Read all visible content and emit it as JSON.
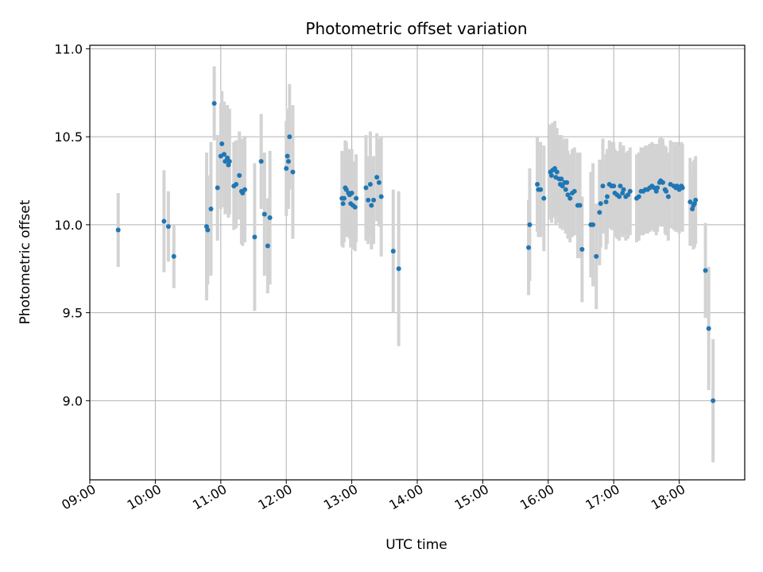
{
  "chart_data": {
    "type": "scatter",
    "title": "Photometric offset variation",
    "xlabel": "UTC time",
    "ylabel": "Photometric offset",
    "grid": true,
    "xlim": [
      "09:00",
      "19:00"
    ],
    "ylim": [
      8.55,
      11.02
    ],
    "x_ticks": [
      "09:00",
      "10:00",
      "11:00",
      "12:00",
      "13:00",
      "14:00",
      "15:00",
      "16:00",
      "17:00",
      "18:00"
    ],
    "y_ticks": [
      "9.0",
      "9.5",
      "10.0",
      "10.5",
      "11.0"
    ],
    "y_tick_values": [
      9.0,
      9.5,
      10.0,
      10.5,
      11.0
    ],
    "marker_color": "#1f77b4",
    "errorbar_color": "#d3d3d3",
    "points": [
      [
        "09:26",
        9.97,
        0.21
      ],
      [
        "10:08",
        10.02,
        0.29
      ],
      [
        "10:12",
        9.99,
        0.2
      ],
      [
        "10:17",
        9.82,
        0.18
      ],
      [
        "10:47",
        9.99,
        0.42
      ],
      [
        "10:48",
        9.97,
        0.31
      ],
      [
        "10:51",
        10.09,
        0.38
      ],
      [
        "10:54",
        10.69,
        0.21
      ],
      [
        "10:57",
        10.21,
        0.3
      ],
      [
        "11:00",
        10.39,
        0.3
      ],
      [
        "11:01",
        10.46,
        0.3
      ],
      [
        "11:03",
        10.4,
        0.3
      ],
      [
        "11:04",
        10.36,
        0.3
      ],
      [
        "11:06",
        10.38,
        0.3
      ],
      [
        "11:07",
        10.34,
        0.3
      ],
      [
        "11:08",
        10.36,
        0.3
      ],
      [
        "11:12",
        10.22,
        0.25
      ],
      [
        "11:14",
        10.23,
        0.25
      ],
      [
        "11:17",
        10.28,
        0.25
      ],
      [
        "11:19",
        10.19,
        0.3
      ],
      [
        "11:20",
        10.18,
        0.3
      ],
      [
        "11:22",
        10.2,
        0.3
      ],
      [
        "11:31",
        9.93,
        0.42
      ],
      [
        "11:37",
        10.36,
        0.27
      ],
      [
        "11:40",
        10.06,
        0.35
      ],
      [
        "11:43",
        9.88,
        0.27
      ],
      [
        "11:45",
        10.04,
        0.38
      ],
      [
        "12:00",
        10.32,
        0.27
      ],
      [
        "12:01",
        10.39,
        0.27
      ],
      [
        "12:02",
        10.36,
        0.27
      ],
      [
        "12:03",
        10.5,
        0.3
      ],
      [
        "12:06",
        10.3,
        0.38
      ],
      [
        "12:51",
        10.15,
        0.27
      ],
      [
        "12:52",
        10.12,
        0.25
      ],
      [
        "12:53",
        10.15,
        0.25
      ],
      [
        "12:54",
        10.21,
        0.27
      ],
      [
        "12:55",
        10.2,
        0.27
      ],
      [
        "12:57",
        10.18,
        0.25
      ],
      [
        "12:58",
        10.17,
        0.25
      ],
      [
        "12:59",
        10.12,
        0.25
      ],
      [
        "13:00",
        10.18,
        0.25
      ],
      [
        "13:01",
        10.11,
        0.25
      ],
      [
        "13:03",
        10.1,
        0.25
      ],
      [
        "13:04",
        10.15,
        0.25
      ],
      [
        "13:13",
        10.21,
        0.3
      ],
      [
        "13:15",
        10.14,
        0.25
      ],
      [
        "13:17",
        10.23,
        0.3
      ],
      [
        "13:18",
        10.11,
        0.25
      ],
      [
        "13:20",
        10.14,
        0.25
      ],
      [
        "13:23",
        10.27,
        0.25
      ],
      [
        "13:25",
        10.24,
        0.25
      ],
      [
        "13:27",
        10.16,
        0.34
      ],
      [
        "13:38",
        9.85,
        0.35
      ],
      [
        "13:43",
        9.75,
        0.44
      ],
      [
        "15:42",
        9.87,
        0.27
      ],
      [
        "15:43",
        10.0,
        0.32
      ],
      [
        "15:50",
        10.23,
        0.27
      ],
      [
        "15:51",
        10.2,
        0.27
      ],
      [
        "15:53",
        10.2,
        0.27
      ],
      [
        "15:56",
        10.15,
        0.3
      ],
      [
        "16:02",
        10.3,
        0.27
      ],
      [
        "16:03",
        10.28,
        0.27
      ],
      [
        "16:04",
        10.31,
        0.27
      ],
      [
        "16:06",
        10.32,
        0.27
      ],
      [
        "16:07",
        10.27,
        0.27
      ],
      [
        "16:08",
        10.3,
        0.25
      ],
      [
        "16:10",
        10.26,
        0.25
      ],
      [
        "16:11",
        10.23,
        0.25
      ],
      [
        "16:12",
        10.26,
        0.25
      ],
      [
        "16:13",
        10.22,
        0.25
      ],
      [
        "16:15",
        10.24,
        0.25
      ],
      [
        "16:16",
        10.2,
        0.25
      ],
      [
        "16:17",
        10.24,
        0.25
      ],
      [
        "16:18",
        10.17,
        0.25
      ],
      [
        "16:20",
        10.15,
        0.25
      ],
      [
        "16:22",
        10.18,
        0.25
      ],
      [
        "16:24",
        10.19,
        0.25
      ],
      [
        "16:27",
        10.11,
        0.3
      ],
      [
        "16:29",
        10.11,
        0.3
      ],
      [
        "16:31",
        9.86,
        0.3
      ],
      [
        "16:39",
        10.0,
        0.3
      ],
      [
        "16:41",
        10.0,
        0.35
      ],
      [
        "16:44",
        9.82,
        0.3
      ],
      [
        "16:47",
        10.07,
        0.3
      ],
      [
        "16:48",
        10.12,
        0.25
      ],
      [
        "16:50",
        10.22,
        0.27
      ],
      [
        "16:53",
        10.13,
        0.27
      ],
      [
        "16:54",
        10.16,
        0.27
      ],
      [
        "16:56",
        10.23,
        0.25
      ],
      [
        "16:58",
        10.22,
        0.25
      ],
      [
        "17:00",
        10.22,
        0.25
      ],
      [
        "17:01",
        10.18,
        0.25
      ],
      [
        "17:03",
        10.17,
        0.25
      ],
      [
        "17:05",
        10.16,
        0.25
      ],
      [
        "17:06",
        10.22,
        0.25
      ],
      [
        "17:08",
        10.18,
        0.25
      ],
      [
        "17:09",
        10.2,
        0.25
      ],
      [
        "17:11",
        10.16,
        0.25
      ],
      [
        "17:13",
        10.17,
        0.25
      ],
      [
        "17:15",
        10.19,
        0.25
      ],
      [
        "17:21",
        10.15,
        0.25
      ],
      [
        "17:23",
        10.16,
        0.25
      ],
      [
        "17:25",
        10.19,
        0.25
      ],
      [
        "17:27",
        10.19,
        0.25
      ],
      [
        "17:29",
        10.2,
        0.25
      ],
      [
        "17:31",
        10.2,
        0.25
      ],
      [
        "17:33",
        10.21,
        0.25
      ],
      [
        "17:35",
        10.22,
        0.25
      ],
      [
        "17:37",
        10.21,
        0.25
      ],
      [
        "17:39",
        10.19,
        0.25
      ],
      [
        "17:40",
        10.21,
        0.25
      ],
      [
        "17:42",
        10.24,
        0.25
      ],
      [
        "17:43",
        10.25,
        0.25
      ],
      [
        "17:45",
        10.24,
        0.25
      ],
      [
        "17:47",
        10.2,
        0.25
      ],
      [
        "17:48",
        10.19,
        0.25
      ],
      [
        "17:50",
        10.16,
        0.25
      ],
      [
        "17:52",
        10.23,
        0.25
      ],
      [
        "17:55",
        10.22,
        0.25
      ],
      [
        "17:57",
        10.21,
        0.25
      ],
      [
        "17:58",
        10.22,
        0.25
      ],
      [
        "18:00",
        10.2,
        0.25
      ],
      [
        "18:02",
        10.22,
        0.25
      ],
      [
        "18:03",
        10.21,
        0.25
      ],
      [
        "18:10",
        10.13,
        0.25
      ],
      [
        "18:12",
        10.09,
        0.2
      ],
      [
        "18:13",
        10.11,
        0.25
      ],
      [
        "18:14",
        10.12,
        0.25
      ],
      [
        "18:15",
        10.14,
        0.25
      ],
      [
        "18:24",
        9.74,
        0.27
      ],
      [
        "18:27",
        9.41,
        0.35
      ],
      [
        "18:31",
        9.0,
        0.35
      ]
    ]
  }
}
